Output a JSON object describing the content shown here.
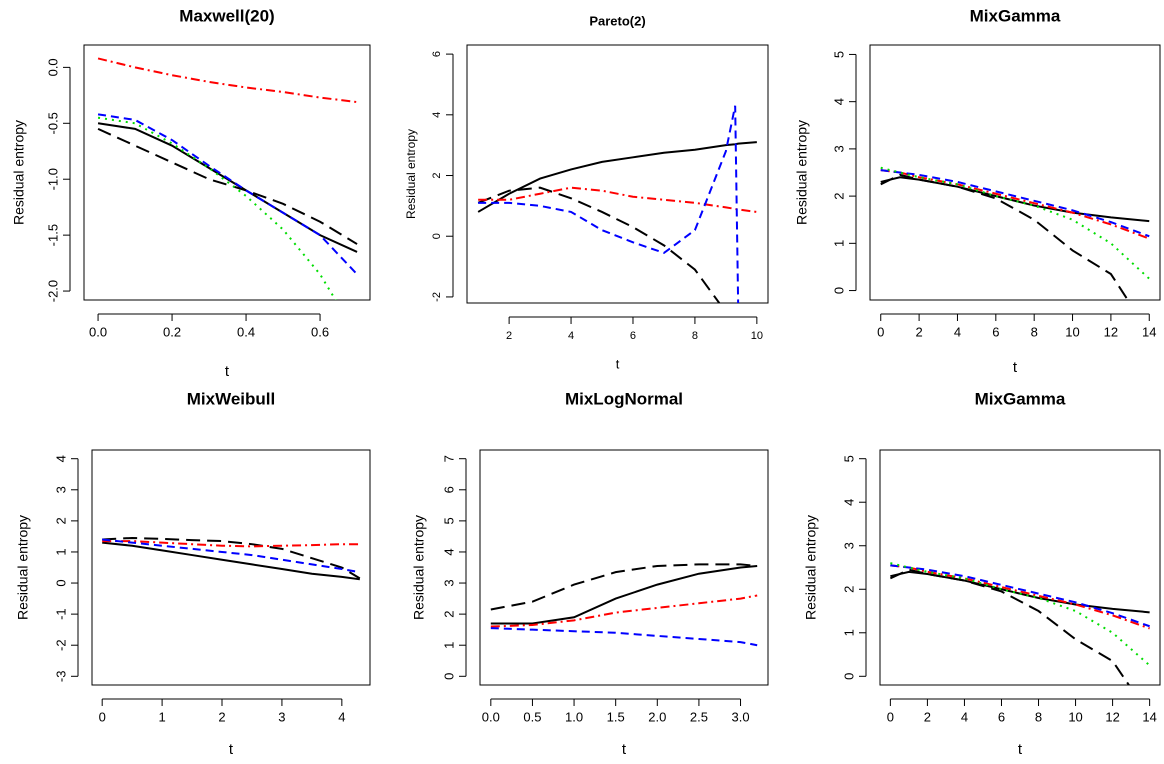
{
  "chart_data": [
    {
      "type": "line",
      "title": "Maxwell(20)",
      "x_label": "t",
      "y_label": "Residual entropy",
      "x": [
        0,
        0.1,
        0.2,
        0.3,
        0.4,
        0.5,
        0.6,
        0.7
      ],
      "xlim": [
        -0.038,
        0.735
      ],
      "xticks": [
        {
          "value": 0,
          "label": "0.0"
        },
        0.2,
        0.4,
        0.6
      ],
      "ylim": [
        -2.08,
        0.2
      ],
      "yticks": [
        {
          "value": 0,
          "label": "0.0"
        },
        -0.5,
        {
          "value": -1,
          "label": "-1.0"
        },
        -1.5,
        {
          "value": -2,
          "label": "-2.0"
        }
      ],
      "series": [
        {
          "color": "#000000",
          "style": "solid",
          "values": [
            -0.5,
            -0.55,
            -0.7,
            -0.9,
            -1.1,
            -1.3,
            -1.5,
            -1.65
          ]
        },
        {
          "color": "#000000",
          "style": "dashed",
          "values": [
            -0.55,
            -0.7,
            -0.85,
            -1.0,
            -1.1,
            -1.22,
            -1.38,
            -1.58
          ]
        },
        {
          "color": "#ff0000",
          "style": "dotdash",
          "values": [
            0.08,
            0.0,
            -0.07,
            -0.13,
            -0.18,
            -0.22,
            -0.27,
            -0.31
          ]
        },
        {
          "color": "#0000ff",
          "style": "dashed-short",
          "values": [
            -0.42,
            -0.47,
            -0.65,
            -0.88,
            -1.1,
            -1.3,
            -1.5,
            -1.85
          ]
        },
        {
          "color": "#00dd00",
          "style": "dotted",
          "values": [
            -0.45,
            -0.5,
            -0.68,
            -0.9,
            -1.15,
            -1.45,
            -1.85,
            -2.4
          ]
        }
      ]
    },
    {
      "type": "line",
      "title": "Pareto(2)",
      "x_label": "t",
      "y_label": "Residual entropy",
      "x": [
        1,
        2,
        3,
        4,
        5,
        6,
        7,
        8,
        9,
        9.3,
        9.4,
        10
      ],
      "xlim": [
        0.64,
        10.36
      ],
      "xticks": [
        2,
        4,
        6,
        8,
        10
      ],
      "ylim": [
        -2.2,
        6.3
      ],
      "yticks": [
        -2,
        0,
        2,
        4,
        6
      ],
      "series": [
        {
          "color": "#000000",
          "style": "solid",
          "values": [
            0.8,
            1.4,
            1.9,
            2.2,
            2.45,
            2.6,
            2.75,
            2.85,
            3.0,
            3.03,
            3.05,
            3.1
          ]
        },
        {
          "color": "#000000",
          "style": "dashed",
          "values": [
            1.1,
            1.5,
            1.6,
            1.25,
            0.8,
            0.3,
            -0.3,
            -1.1,
            -2.5,
            null,
            null,
            null
          ]
        },
        {
          "color": "#ff0000",
          "style": "dotdash",
          "values": [
            1.2,
            1.2,
            1.4,
            1.6,
            1.5,
            1.3,
            1.2,
            1.1,
            0.95,
            0.9,
            0.88,
            0.8
          ]
        },
        {
          "color": "#0000ff",
          "style": "dashed-short",
          "values": [
            1.1,
            1.1,
            1.0,
            0.8,
            0.2,
            -0.2,
            -0.55,
            0.2,
            2.8,
            4.3,
            -2.5,
            null
          ]
        }
      ]
    },
    {
      "type": "line",
      "title": "MixGamma",
      "x_label": "t",
      "y_label": "Residual entropy",
      "x": [
        0,
        1,
        2,
        4,
        6,
        8,
        10,
        12,
        14
      ],
      "xlim": [
        -0.56,
        14.56
      ],
      "xticks": [
        0,
        2,
        4,
        6,
        8,
        10,
        12,
        14
      ],
      "ylim": [
        -0.2,
        5.2
      ],
      "yticks": [
        0,
        1,
        2,
        3,
        4,
        5
      ],
      "series": [
        {
          "color": "#000000",
          "style": "solid",
          "values": [
            2.3,
            2.4,
            2.35,
            2.2,
            2.0,
            1.8,
            1.65,
            1.55,
            1.47
          ]
        },
        {
          "color": "#000000",
          "style": "dashed",
          "values": [
            2.25,
            2.45,
            2.35,
            2.2,
            1.95,
            1.5,
            0.85,
            0.35,
            -0.9
          ]
        },
        {
          "color": "#ff0000",
          "style": "dotdash",
          "values": [
            2.55,
            2.5,
            2.4,
            2.25,
            2.05,
            1.85,
            1.65,
            1.4,
            1.1
          ]
        },
        {
          "color": "#0000ff",
          "style": "dashed-short",
          "values": [
            2.55,
            2.5,
            2.45,
            2.3,
            2.1,
            1.9,
            1.7,
            1.45,
            1.15
          ]
        },
        {
          "color": "#00dd00",
          "style": "dotted",
          "values": [
            2.6,
            2.5,
            2.4,
            2.25,
            2.0,
            1.8,
            1.5,
            1.0,
            0.25
          ]
        }
      ]
    },
    {
      "type": "line",
      "title": "MixWeibull",
      "x_label": "t",
      "y_label": "Residual entropy",
      "x": [
        0,
        0.5,
        1,
        1.5,
        2,
        2.5,
        3,
        3.5,
        4,
        4.3
      ],
      "xlim": [
        -0.17,
        4.47
      ],
      "xticks": [
        0,
        1,
        2,
        3,
        4
      ],
      "ylim": [
        -3.28,
        4.28
      ],
      "yticks": [
        -3,
        -2,
        -1,
        0,
        1,
        2,
        3,
        4
      ],
      "series": [
        {
          "color": "#000000",
          "style": "solid",
          "values": [
            1.3,
            1.2,
            1.05,
            0.9,
            0.75,
            0.6,
            0.45,
            0.3,
            0.2,
            0.12
          ]
        },
        {
          "color": "#000000",
          "style": "dashed",
          "values": [
            1.4,
            1.45,
            1.42,
            1.38,
            1.35,
            1.25,
            1.1,
            0.8,
            0.5,
            0.15
          ]
        },
        {
          "color": "#ff0000",
          "style": "dotdash",
          "values": [
            1.35,
            1.35,
            1.3,
            1.25,
            1.2,
            1.18,
            1.2,
            1.22,
            1.25,
            1.25
          ]
        },
        {
          "color": "#0000ff",
          "style": "dashed-short",
          "values": [
            1.4,
            1.3,
            1.2,
            1.1,
            1.0,
            0.9,
            0.75,
            0.6,
            0.45,
            0.35
          ]
        }
      ]
    },
    {
      "type": "line",
      "title": "MixLogNormal",
      "x_label": "t",
      "y_label": "Residual entropy",
      "x": [
        0,
        0.5,
        1,
        1.5,
        2,
        2.5,
        3,
        3.2
      ],
      "xlim": [
        -0.13,
        3.33
      ],
      "xticks": [
        {
          "value": 0,
          "label": "0.0"
        },
        0.5,
        {
          "value": 1,
          "label": "1.0"
        },
        1.5,
        {
          "value": 2,
          "label": "2.0"
        },
        2.5,
        {
          "value": 3,
          "label": "3.0"
        }
      ],
      "ylim": [
        -0.28,
        7.28
      ],
      "yticks": [
        0,
        1,
        2,
        3,
        4,
        5,
        6,
        7
      ],
      "series": [
        {
          "color": "#000000",
          "style": "solid",
          "values": [
            1.7,
            1.7,
            1.9,
            2.5,
            2.95,
            3.3,
            3.5,
            3.55
          ]
        },
        {
          "color": "#000000",
          "style": "dashed",
          "values": [
            2.15,
            2.4,
            2.95,
            3.35,
            3.55,
            3.6,
            3.6,
            3.55
          ]
        },
        {
          "color": "#ff0000",
          "style": "dotdash",
          "values": [
            1.6,
            1.65,
            1.8,
            2.05,
            2.2,
            2.35,
            2.5,
            2.6
          ]
        },
        {
          "color": "#0000ff",
          "style": "dashed-short",
          "values": [
            1.55,
            1.5,
            1.45,
            1.4,
            1.3,
            1.2,
            1.1,
            1.0
          ]
        }
      ]
    },
    {
      "type": "line",
      "title": "MixGamma",
      "x_label": "t",
      "y_label": "Residual entropy",
      "x": [
        0,
        1,
        2,
        4,
        6,
        8,
        10,
        12,
        14
      ],
      "xlim": [
        -0.56,
        14.56
      ],
      "xticks": [
        0,
        2,
        4,
        6,
        8,
        10,
        12,
        14
      ],
      "ylim": [
        -0.2,
        5.2
      ],
      "yticks": [
        0,
        1,
        2,
        3,
        4,
        5
      ],
      "series": [
        {
          "color": "#000000",
          "style": "solid",
          "values": [
            2.3,
            2.4,
            2.35,
            2.2,
            2.0,
            1.8,
            1.65,
            1.55,
            1.47
          ]
        },
        {
          "color": "#000000",
          "style": "dashed",
          "values": [
            2.25,
            2.45,
            2.35,
            2.2,
            1.95,
            1.5,
            0.85,
            0.35,
            -0.9
          ]
        },
        {
          "color": "#ff0000",
          "style": "dotdash",
          "values": [
            2.55,
            2.5,
            2.4,
            2.25,
            2.05,
            1.85,
            1.65,
            1.4,
            1.1
          ]
        },
        {
          "color": "#0000ff",
          "style": "dashed-short",
          "values": [
            2.55,
            2.5,
            2.45,
            2.3,
            2.1,
            1.9,
            1.7,
            1.45,
            1.15
          ]
        },
        {
          "color": "#00dd00",
          "style": "dotted",
          "values": [
            2.6,
            2.5,
            2.4,
            2.25,
            2.0,
            1.8,
            1.5,
            1.0,
            0.25
          ]
        }
      ]
    }
  ]
}
